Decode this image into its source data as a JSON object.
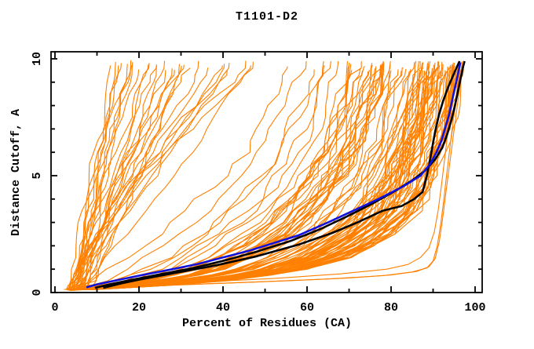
{
  "chart_data": {
    "type": "line",
    "title": "T1101-D2",
    "xlabel": "Percent of Residues (CA)",
    "ylabel": "Distance Cutoff, A",
    "xlim": [
      0,
      100
    ],
    "ylim": [
      0,
      10
    ],
    "x_major_ticks": [
      0,
      20,
      40,
      60,
      80,
      100
    ],
    "x_minor_step": 10,
    "y_major_ticks": [
      0,
      5,
      10
    ],
    "y_minor_step": 1,
    "grid": false,
    "legend": "none",
    "colors": {
      "ensemble": "#ff8000",
      "highlight": "#1212dd",
      "reference": "#000000",
      "frame": "#000000",
      "background": "#ffffff"
    },
    "series": [
      {
        "name": "highlighted-model-blue",
        "color_key": "highlight",
        "width": 2.6,
        "points": [
          [
            7.5,
            0.22
          ],
          [
            10,
            0.35
          ],
          [
            14,
            0.5
          ],
          [
            20,
            0.72
          ],
          [
            28,
            1.0
          ],
          [
            34,
            1.22
          ],
          [
            40,
            1.5
          ],
          [
            46,
            1.78
          ],
          [
            50,
            2.0
          ],
          [
            58,
            2.45
          ],
          [
            65,
            3.0
          ],
          [
            71,
            3.5
          ],
          [
            77,
            4.0
          ],
          [
            83,
            4.55
          ],
          [
            87,
            5.0
          ],
          [
            89.3,
            5.5
          ],
          [
            90.8,
            6.0
          ],
          [
            92,
            6.5
          ],
          [
            93,
            7.1
          ],
          [
            93.8,
            7.6
          ],
          [
            94.4,
            8.1
          ],
          [
            95,
            8.6
          ],
          [
            95.6,
            9.1
          ],
          [
            96.1,
            9.5
          ],
          [
            96.5,
            9.85
          ]
        ]
      },
      {
        "name": "reference-model-black-1",
        "color_key": "reference",
        "width": 2.6,
        "points": [
          [
            9.5,
            0.2
          ],
          [
            13,
            0.35
          ],
          [
            17,
            0.5
          ],
          [
            25,
            0.78
          ],
          [
            33,
            1.05
          ],
          [
            41,
            1.4
          ],
          [
            48,
            1.75
          ],
          [
            56,
            2.2
          ],
          [
            63,
            2.7
          ],
          [
            70,
            3.3
          ],
          [
            76,
            3.85
          ],
          [
            81,
            4.35
          ],
          [
            85,
            4.8
          ],
          [
            88,
            5.2
          ],
          [
            90.5,
            5.7
          ],
          [
            92.2,
            6.2
          ],
          [
            93.4,
            6.8
          ],
          [
            94.4,
            7.4
          ],
          [
            95.2,
            8.0
          ],
          [
            95.9,
            8.6
          ],
          [
            96.6,
            9.2
          ],
          [
            97.2,
            9.7
          ],
          [
            97.5,
            9.9
          ]
        ]
      },
      {
        "name": "reference-model-black-2",
        "color_key": "reference",
        "width": 2.6,
        "points": [
          [
            11.5,
            0.2
          ],
          [
            16,
            0.4
          ],
          [
            20,
            0.55
          ],
          [
            28,
            0.82
          ],
          [
            38,
            1.15
          ],
          [
            48,
            1.55
          ],
          [
            58,
            2.05
          ],
          [
            66,
            2.55
          ],
          [
            72,
            3.0
          ],
          [
            78,
            3.5
          ],
          [
            82.5,
            3.7
          ],
          [
            85.5,
            4.0
          ],
          [
            87.5,
            4.3
          ],
          [
            88.5,
            5.0
          ],
          [
            89.2,
            5.6
          ],
          [
            89.8,
            6.2
          ],
          [
            90.5,
            6.9
          ],
          [
            91.4,
            7.6
          ],
          [
            92.4,
            8.2
          ],
          [
            93.6,
            8.8
          ],
          [
            94.8,
            9.3
          ],
          [
            95.8,
            9.7
          ],
          [
            96.3,
            9.9
          ]
        ]
      },
      {
        "name": "outlier-model-a",
        "color_key": "ensemble",
        "width": 1.1,
        "points": [
          [
            3,
            0.1
          ],
          [
            12,
            0.2
          ],
          [
            25,
            0.3
          ],
          [
            40,
            0.4
          ],
          [
            55,
            0.5
          ],
          [
            70,
            0.62
          ],
          [
            80,
            0.75
          ],
          [
            86,
            0.9
          ],
          [
            89,
            1.1
          ],
          [
            90.5,
            1.45
          ],
          [
            91.5,
            2.2
          ],
          [
            92.3,
            3.2
          ],
          [
            93,
            4.2
          ],
          [
            93.8,
            5.3
          ],
          [
            94.6,
            6.4
          ],
          [
            95.4,
            7.5
          ],
          [
            96.2,
            8.6
          ],
          [
            96.8,
            9.5
          ]
        ]
      },
      {
        "name": "outlier-model-b",
        "color_key": "ensemble",
        "width": 1.1,
        "points": [
          [
            3.5,
            0.08
          ],
          [
            15,
            0.22
          ],
          [
            30,
            0.33
          ],
          [
            48,
            0.45
          ],
          [
            65,
            0.58
          ],
          [
            78,
            0.72
          ],
          [
            85,
            0.88
          ],
          [
            88.5,
            1.05
          ],
          [
            90,
            1.35
          ],
          [
            91,
            2.0
          ],
          [
            91.8,
            2.9
          ],
          [
            92.5,
            3.9
          ],
          [
            93.2,
            5.0
          ],
          [
            94,
            6.2
          ],
          [
            94.8,
            7.4
          ],
          [
            95.6,
            8.6
          ],
          [
            96.3,
            9.55
          ]
        ]
      },
      {
        "name": "outlier-model-c",
        "color_key": "ensemble",
        "width": 1.1,
        "points": [
          [
            4,
            0.12
          ],
          [
            18,
            0.3
          ],
          [
            35,
            0.45
          ],
          [
            52,
            0.6
          ],
          [
            68,
            0.8
          ],
          [
            79,
            1.0
          ],
          [
            84,
            1.2
          ],
          [
            87,
            1.5
          ],
          [
            89,
            1.9
          ],
          [
            90.3,
            2.6
          ],
          [
            91.2,
            3.5
          ],
          [
            92,
            4.6
          ],
          [
            92.8,
            5.8
          ],
          [
            93.6,
            7.0
          ],
          [
            94.4,
            8.2
          ],
          [
            95.2,
            9.3
          ],
          [
            95.6,
            9.7
          ]
        ]
      }
    ],
    "ensemble": {
      "description": "approx. 125 predicted-model curves: percent of CA residues under each distance cutoff",
      "seed": 77,
      "count_band": 92,
      "count_steep_fan": 30,
      "cut_levels": [
        0.12,
        0.3,
        0.5,
        0.75,
        1,
        1.5,
        2,
        2.5,
        3,
        3.5,
        4,
        4.5,
        5,
        5.5,
        6,
        6.5,
        7,
        7.5,
        8,
        8.5,
        9,
        9.3,
        9.6
      ],
      "band_envelope_left": [
        3,
        5.5,
        8,
        10.5,
        13,
        17,
        21,
        24.5,
        28,
        31,
        34,
        37,
        40,
        42.5,
        45,
        46.5,
        48,
        49.5,
        51,
        52,
        53,
        53.5,
        54
      ],
      "band_envelope_right": [
        8,
        25,
        40,
        52,
        60,
        70,
        76,
        80.5,
        84,
        86.5,
        88,
        89.5,
        90.5,
        91.3,
        92,
        92.8,
        93.5,
        94,
        94.5,
        95,
        95.5,
        96,
        96.5
      ],
      "fan_start_x_range": [
        3,
        7
      ],
      "fan_top_x_range": [
        14,
        50
      ]
    },
    "tick_label_texts": {
      "x": [
        "0",
        "20",
        "40",
        "60",
        "80",
        "100"
      ],
      "y": [
        "0",
        "5",
        "10"
      ]
    }
  }
}
